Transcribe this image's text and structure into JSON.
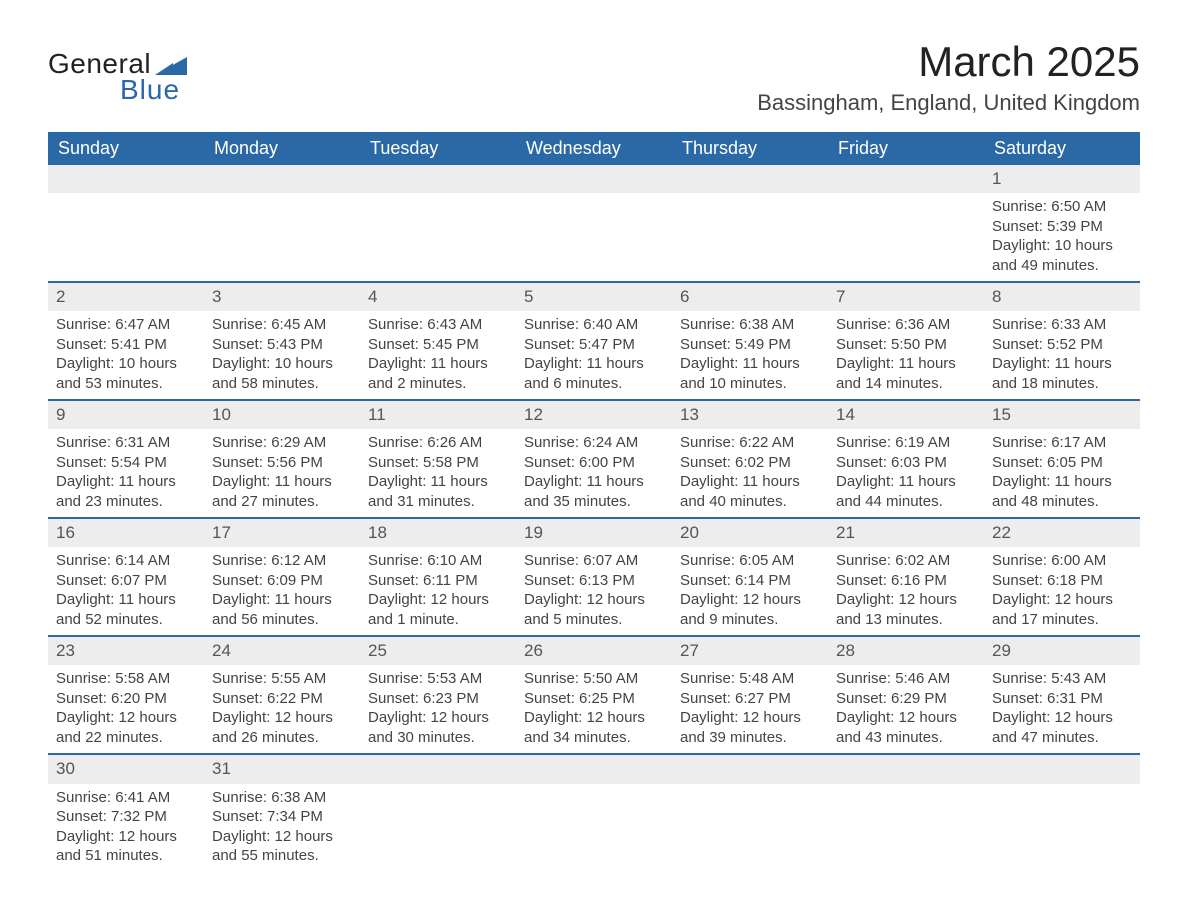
{
  "logo": {
    "line1": "General",
    "line2": "Blue",
    "triangle_color": "#2b68a6"
  },
  "title": "March 2025",
  "location": "Bassingham, England, United Kingdom",
  "colors": {
    "header_bg": "#2b68a6",
    "header_fg": "#ffffff",
    "daynum_bg": "#ededed",
    "border": "#2b68a6"
  },
  "weekdays": [
    "Sunday",
    "Monday",
    "Tuesday",
    "Wednesday",
    "Thursday",
    "Friday",
    "Saturday"
  ],
  "weeks": [
    [
      null,
      null,
      null,
      null,
      null,
      null,
      {
        "n": "1",
        "sr": "Sunrise: 6:50 AM",
        "ss": "Sunset: 5:39 PM",
        "d1": "Daylight: 10 hours",
        "d2": "and 49 minutes."
      }
    ],
    [
      {
        "n": "2",
        "sr": "Sunrise: 6:47 AM",
        "ss": "Sunset: 5:41 PM",
        "d1": "Daylight: 10 hours",
        "d2": "and 53 minutes."
      },
      {
        "n": "3",
        "sr": "Sunrise: 6:45 AM",
        "ss": "Sunset: 5:43 PM",
        "d1": "Daylight: 10 hours",
        "d2": "and 58 minutes."
      },
      {
        "n": "4",
        "sr": "Sunrise: 6:43 AM",
        "ss": "Sunset: 5:45 PM",
        "d1": "Daylight: 11 hours",
        "d2": "and 2 minutes."
      },
      {
        "n": "5",
        "sr": "Sunrise: 6:40 AM",
        "ss": "Sunset: 5:47 PM",
        "d1": "Daylight: 11 hours",
        "d2": "and 6 minutes."
      },
      {
        "n": "6",
        "sr": "Sunrise: 6:38 AM",
        "ss": "Sunset: 5:49 PM",
        "d1": "Daylight: 11 hours",
        "d2": "and 10 minutes."
      },
      {
        "n": "7",
        "sr": "Sunrise: 6:36 AM",
        "ss": "Sunset: 5:50 PM",
        "d1": "Daylight: 11 hours",
        "d2": "and 14 minutes."
      },
      {
        "n": "8",
        "sr": "Sunrise: 6:33 AM",
        "ss": "Sunset: 5:52 PM",
        "d1": "Daylight: 11 hours",
        "d2": "and 18 minutes."
      }
    ],
    [
      {
        "n": "9",
        "sr": "Sunrise: 6:31 AM",
        "ss": "Sunset: 5:54 PM",
        "d1": "Daylight: 11 hours",
        "d2": "and 23 minutes."
      },
      {
        "n": "10",
        "sr": "Sunrise: 6:29 AM",
        "ss": "Sunset: 5:56 PM",
        "d1": "Daylight: 11 hours",
        "d2": "and 27 minutes."
      },
      {
        "n": "11",
        "sr": "Sunrise: 6:26 AM",
        "ss": "Sunset: 5:58 PM",
        "d1": "Daylight: 11 hours",
        "d2": "and 31 minutes."
      },
      {
        "n": "12",
        "sr": "Sunrise: 6:24 AM",
        "ss": "Sunset: 6:00 PM",
        "d1": "Daylight: 11 hours",
        "d2": "and 35 minutes."
      },
      {
        "n": "13",
        "sr": "Sunrise: 6:22 AM",
        "ss": "Sunset: 6:02 PM",
        "d1": "Daylight: 11 hours",
        "d2": "and 40 minutes."
      },
      {
        "n": "14",
        "sr": "Sunrise: 6:19 AM",
        "ss": "Sunset: 6:03 PM",
        "d1": "Daylight: 11 hours",
        "d2": "and 44 minutes."
      },
      {
        "n": "15",
        "sr": "Sunrise: 6:17 AM",
        "ss": "Sunset: 6:05 PM",
        "d1": "Daylight: 11 hours",
        "d2": "and 48 minutes."
      }
    ],
    [
      {
        "n": "16",
        "sr": "Sunrise: 6:14 AM",
        "ss": "Sunset: 6:07 PM",
        "d1": "Daylight: 11 hours",
        "d2": "and 52 minutes."
      },
      {
        "n": "17",
        "sr": "Sunrise: 6:12 AM",
        "ss": "Sunset: 6:09 PM",
        "d1": "Daylight: 11 hours",
        "d2": "and 56 minutes."
      },
      {
        "n": "18",
        "sr": "Sunrise: 6:10 AM",
        "ss": "Sunset: 6:11 PM",
        "d1": "Daylight: 12 hours",
        "d2": "and 1 minute."
      },
      {
        "n": "19",
        "sr": "Sunrise: 6:07 AM",
        "ss": "Sunset: 6:13 PM",
        "d1": "Daylight: 12 hours",
        "d2": "and 5 minutes."
      },
      {
        "n": "20",
        "sr": "Sunrise: 6:05 AM",
        "ss": "Sunset: 6:14 PM",
        "d1": "Daylight: 12 hours",
        "d2": "and 9 minutes."
      },
      {
        "n": "21",
        "sr": "Sunrise: 6:02 AM",
        "ss": "Sunset: 6:16 PM",
        "d1": "Daylight: 12 hours",
        "d2": "and 13 minutes."
      },
      {
        "n": "22",
        "sr": "Sunrise: 6:00 AM",
        "ss": "Sunset: 6:18 PM",
        "d1": "Daylight: 12 hours",
        "d2": "and 17 minutes."
      }
    ],
    [
      {
        "n": "23",
        "sr": "Sunrise: 5:58 AM",
        "ss": "Sunset: 6:20 PM",
        "d1": "Daylight: 12 hours",
        "d2": "and 22 minutes."
      },
      {
        "n": "24",
        "sr": "Sunrise: 5:55 AM",
        "ss": "Sunset: 6:22 PM",
        "d1": "Daylight: 12 hours",
        "d2": "and 26 minutes."
      },
      {
        "n": "25",
        "sr": "Sunrise: 5:53 AM",
        "ss": "Sunset: 6:23 PM",
        "d1": "Daylight: 12 hours",
        "d2": "and 30 minutes."
      },
      {
        "n": "26",
        "sr": "Sunrise: 5:50 AM",
        "ss": "Sunset: 6:25 PM",
        "d1": "Daylight: 12 hours",
        "d2": "and 34 minutes."
      },
      {
        "n": "27",
        "sr": "Sunrise: 5:48 AM",
        "ss": "Sunset: 6:27 PM",
        "d1": "Daylight: 12 hours",
        "d2": "and 39 minutes."
      },
      {
        "n": "28",
        "sr": "Sunrise: 5:46 AM",
        "ss": "Sunset: 6:29 PM",
        "d1": "Daylight: 12 hours",
        "d2": "and 43 minutes."
      },
      {
        "n": "29",
        "sr": "Sunrise: 5:43 AM",
        "ss": "Sunset: 6:31 PM",
        "d1": "Daylight: 12 hours",
        "d2": "and 47 minutes."
      }
    ],
    [
      {
        "n": "30",
        "sr": "Sunrise: 6:41 AM",
        "ss": "Sunset: 7:32 PM",
        "d1": "Daylight: 12 hours",
        "d2": "and 51 minutes."
      },
      {
        "n": "31",
        "sr": "Sunrise: 6:38 AM",
        "ss": "Sunset: 7:34 PM",
        "d1": "Daylight: 12 hours",
        "d2": "and 55 minutes."
      },
      null,
      null,
      null,
      null,
      null
    ]
  ]
}
